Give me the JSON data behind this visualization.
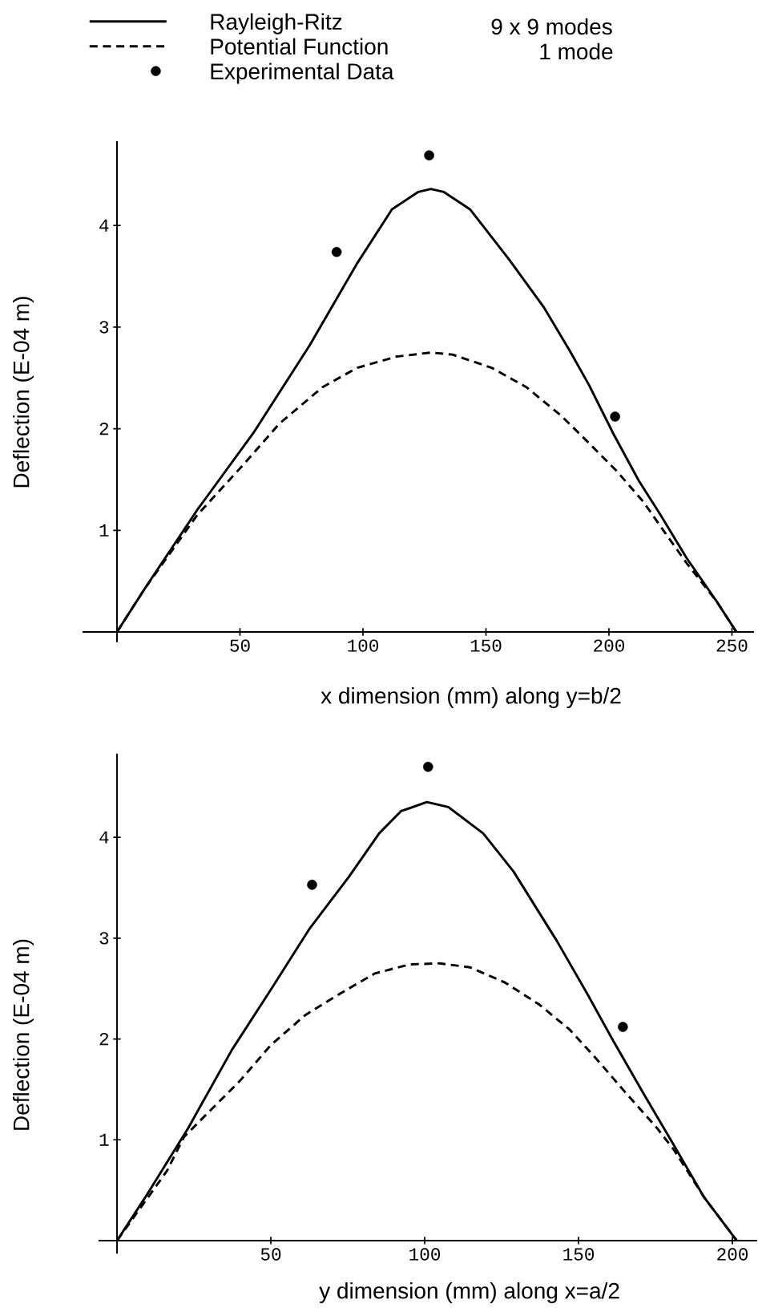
{
  "chart_data": [
    {
      "type": "line",
      "xlabel": "x dimension (mm) along y=b/2",
      "ylabel": "Deflection (E-04 m)",
      "annotations": [
        "9 x 9 modes",
        "1 mode"
      ],
      "xlim": [
        -14,
        259
      ],
      "ylim": [
        -0.1,
        4.83
      ],
      "xticks": [
        50,
        100,
        150,
        200,
        250
      ],
      "yticks": [
        1,
        2,
        3,
        4
      ],
      "legend": "top",
      "series": [
        {
          "name": "Rayleigh-Ritz",
          "color": "#000000",
          "line_style": "solid",
          "marker": "none",
          "x": [
            0,
            11.4,
            32.6,
            55.5,
            78.3,
            97.7,
            111.8,
            122.4,
            127.6,
            132.9,
            143.5,
            159.3,
            173.4,
            184,
            191.9,
            201.6,
            212.1,
            221,
            231.5,
            243.8,
            251.8
          ],
          "values": [
            0,
            0.43,
            1.2,
            1.96,
            2.82,
            3.63,
            4.16,
            4.33,
            4.36,
            4.33,
            4.16,
            3.67,
            3.2,
            2.77,
            2.43,
            1.96,
            1.49,
            1.15,
            0.73,
            0.3,
            0
          ]
        },
        {
          "name": "Potential Function",
          "color": "#000000",
          "line_style": "dashed",
          "marker": "none",
          "x": [
            0,
            11.4,
            32.6,
            51.9,
            66,
            83.6,
            97.7,
            113.6,
            127.6,
            136.4,
            152.3,
            166.4,
            180.5,
            191,
            203.3,
            214,
            222.7,
            231.5,
            243.8,
            251.8
          ],
          "values": [
            0,
            0.43,
            1.15,
            1.66,
            2.05,
            2.41,
            2.6,
            2.71,
            2.75,
            2.73,
            2.6,
            2.41,
            2.13,
            1.88,
            1.58,
            1.28,
            0.98,
            0.68,
            0.3,
            0
          ]
        },
        {
          "name": "Experimental Data",
          "type": "scatter",
          "color": "#000000",
          "marker": "circle",
          "x": [
            89.3,
            126.9,
            202.5
          ],
          "values": [
            3.74,
            4.69,
            2.12
          ]
        }
      ]
    },
    {
      "type": "line",
      "xlabel": "y dimension (mm) along x=a/2",
      "ylabel": "Deflection (E-04 m)",
      "xlim": [
        -6,
        208
      ],
      "ylim": [
        -0.13,
        4.83
      ],
      "xticks": [
        50,
        100,
        150,
        200
      ],
      "yticks": [
        1,
        2,
        3,
        4
      ],
      "series": [
        {
          "color": "#000000",
          "line_style": "solid",
          "marker": "none",
          "x": [
            0,
            9.2,
            23.2,
            37.3,
            50,
            62.7,
            75.4,
            85.2,
            92.3,
            100.7,
            107.7,
            119,
            128.9,
            143,
            152.8,
            161.3,
            171.1,
            180.9,
            190.8,
            201.4
          ],
          "values": [
            0,
            0.43,
            1.12,
            1.89,
            2.49,
            3.1,
            3.61,
            4.04,
            4.26,
            4.35,
            4.3,
            4.04,
            3.66,
            2.97,
            2.45,
            1.98,
            1.46,
            0.95,
            0.43,
            0
          ]
        },
        {
          "color": "#000000",
          "line_style": "dashed",
          "marker": "none",
          "x": [
            0,
            16.2,
            21.8,
            30.3,
            40.1,
            50,
            61.3,
            72.5,
            83.8,
            95.1,
            104.9,
            114.8,
            126.1,
            137.3,
            147.2,
            155.6,
            165.5,
            175.4,
            181,
            190.8,
            201.4
          ],
          "values": [
            0,
            0.69,
            1.03,
            1.29,
            1.59,
            1.94,
            2.24,
            2.45,
            2.65,
            2.74,
            2.75,
            2.71,
            2.56,
            2.34,
            2.09,
            1.81,
            1.46,
            1.12,
            0.9,
            0.43,
            0
          ]
        },
        {
          "type": "scatter",
          "color": "#000000",
          "marker": "circle",
          "x": [
            63.4,
            101.1,
            164.4
          ],
          "values": [
            3.53,
            4.7,
            2.12
          ]
        }
      ]
    }
  ]
}
